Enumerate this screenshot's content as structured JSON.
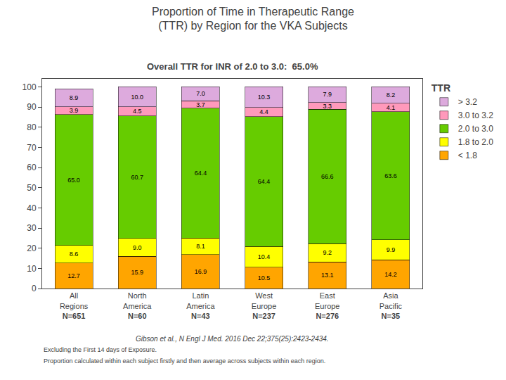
{
  "chart_data": {
    "type": "bar",
    "title": "Proportion of Time in Therapeutic Range\n(TTR) by Region for the VKA Subjects",
    "subtitle": "Overall TTR for INR of 2.0 to 3.0:  65.0%",
    "categories": [
      "All\nRegions",
      "North\nAmerica",
      "Latin\nAmerica",
      "West\nEurope",
      "East\nEurope",
      "Asia\nPacific"
    ],
    "n_labels": [
      "N=651",
      "N=60",
      "N=43",
      "N=237",
      "N=276",
      "N=35"
    ],
    "series": [
      {
        "name": "< 1.8",
        "color": "#FFA500",
        "values": [
          12.7,
          15.9,
          16.9,
          10.5,
          13.1,
          14.2
        ],
        "value_labels": [
          "12.7",
          "15.9",
          "16.9",
          "10.5",
          "13.1",
          "14.2"
        ]
      },
      {
        "name": "1.8 to 2.0",
        "color": "#FFFF00",
        "values": [
          8.6,
          9.0,
          8.1,
          10.4,
          9.2,
          9.9
        ],
        "value_labels": [
          "8.6",
          "9.0",
          "8.1",
          "10.4",
          "9.2",
          "9.9"
        ]
      },
      {
        "name": "2.0 to 3.0",
        "color": "#66CC00",
        "values": [
          65.0,
          60.7,
          64.4,
          64.4,
          66.6,
          63.6
        ],
        "value_labels": [
          "65.0",
          "60.7",
          "64.4",
          "64.4",
          "66.6",
          "63.6"
        ]
      },
      {
        "name": "3.0 to 3.2",
        "color": "#FF99BB",
        "values": [
          3.9,
          4.5,
          3.7,
          4.4,
          3.3,
          4.1
        ],
        "value_labels": [
          "3.9",
          "4.5",
          "3.7",
          "4.4",
          "3.3",
          "4.1"
        ]
      },
      {
        "name": "> 3.2",
        "color": "#DDAADD",
        "values": [
          8.9,
          10.0,
          7.0,
          10.3,
          7.9,
          8.2
        ],
        "value_labels": [
          "8.9",
          "10.0",
          "7.0",
          "10.3",
          "7.9",
          "8.2"
        ]
      }
    ],
    "legend_title": "TTR",
    "stacked": true,
    "data_labels": true,
    "grid": false,
    "ylim": [
      0,
      104
    ],
    "yticks": [
      0,
      10,
      20,
      30,
      40,
      50,
      60,
      70,
      80,
      90,
      100
    ],
    "annotations": [
      "Gibson et al., N Engl J Med. 2016 Dec 22;375(25):2423-2434.",
      "Excluding the First 14 days of Exposure.",
      "Proportion calculated within each subject firstly and then average across subjects within each region."
    ]
  }
}
